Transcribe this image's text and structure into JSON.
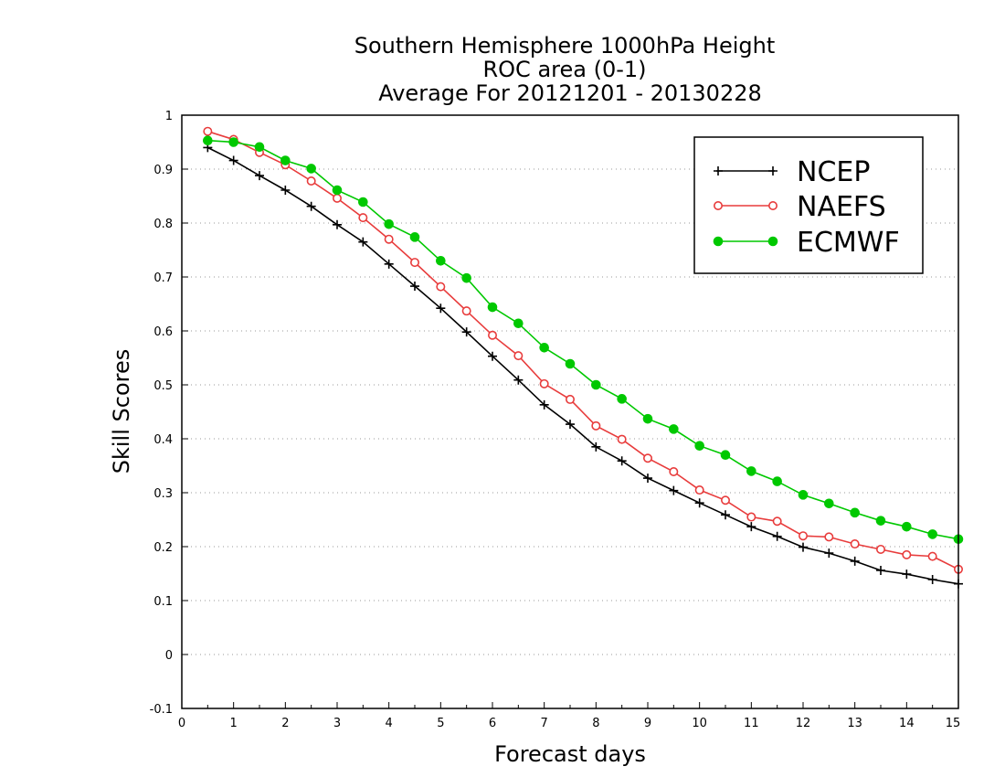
{
  "chart_data": {
    "type": "line",
    "title_lines": [
      "Southern Hemisphere 1000hPa Height",
      "ROC area (0-1)",
      "Average For 20121201 - 20130228"
    ],
    "xlabel": "Forecast days",
    "ylabel": "Skill Scores",
    "xlim": [
      0,
      15
    ],
    "ylim": [
      -0.1,
      1
    ],
    "x_ticks": [
      0,
      1,
      2,
      3,
      4,
      5,
      6,
      7,
      8,
      9,
      10,
      11,
      12,
      13,
      14,
      15
    ],
    "y_ticks": [
      -0.1,
      0,
      0.1,
      0.2,
      0.3,
      0.4,
      0.5,
      0.6,
      0.7,
      0.8,
      0.9,
      1
    ],
    "y_tick_labels": [
      "-0.1",
      "0",
      "0.1",
      "0.2",
      "0.3",
      "0.4",
      "0.5",
      "0.6",
      "0.7",
      "0.8",
      "0.9",
      "1"
    ],
    "grid": "horizontal dotted",
    "legend_position": "top-right",
    "x": [
      0.5,
      1,
      1.5,
      2,
      2.5,
      3,
      3.5,
      4,
      4.5,
      5,
      5.5,
      6,
      6.5,
      7,
      7.5,
      8,
      8.5,
      9,
      9.5,
      10,
      10.5,
      11,
      11.5,
      12,
      12.5,
      13,
      13.5,
      14,
      14.5,
      15
    ],
    "series": [
      {
        "name": "NCEP",
        "color": "#000000",
        "marker": "plus",
        "values": [
          0.94,
          0.916,
          0.888,
          0.861,
          0.831,
          0.797,
          0.765,
          0.724,
          0.683,
          0.642,
          0.598,
          0.553,
          0.509,
          0.463,
          0.427,
          0.385,
          0.359,
          0.327,
          0.304,
          0.281,
          0.259,
          0.237,
          0.219,
          0.199,
          0.188,
          0.173,
          0.156,
          0.149,
          0.139,
          0.131
        ]
      },
      {
        "name": "NAEFS",
        "color": "#e83c3c",
        "marker": "open-circle",
        "values": [
          0.97,
          0.955,
          0.931,
          0.908,
          0.878,
          0.846,
          0.81,
          0.77,
          0.727,
          0.682,
          0.637,
          0.592,
          0.554,
          0.502,
          0.473,
          0.424,
          0.399,
          0.364,
          0.339,
          0.305,
          0.286,
          0.255,
          0.247,
          0.22,
          0.218,
          0.205,
          0.195,
          0.185,
          0.182,
          0.158
        ]
      },
      {
        "name": "ECMWF",
        "color": "#00c800",
        "marker": "filled-circle",
        "values": [
          0.953,
          0.95,
          0.941,
          0.916,
          0.901,
          0.861,
          0.839,
          0.798,
          0.774,
          0.73,
          0.698,
          0.644,
          0.614,
          0.569,
          0.539,
          0.5,
          0.474,
          0.437,
          0.418,
          0.387,
          0.37,
          0.34,
          0.321,
          0.296,
          0.28,
          0.263,
          0.248,
          0.237,
          0.223,
          0.214
        ]
      }
    ]
  }
}
